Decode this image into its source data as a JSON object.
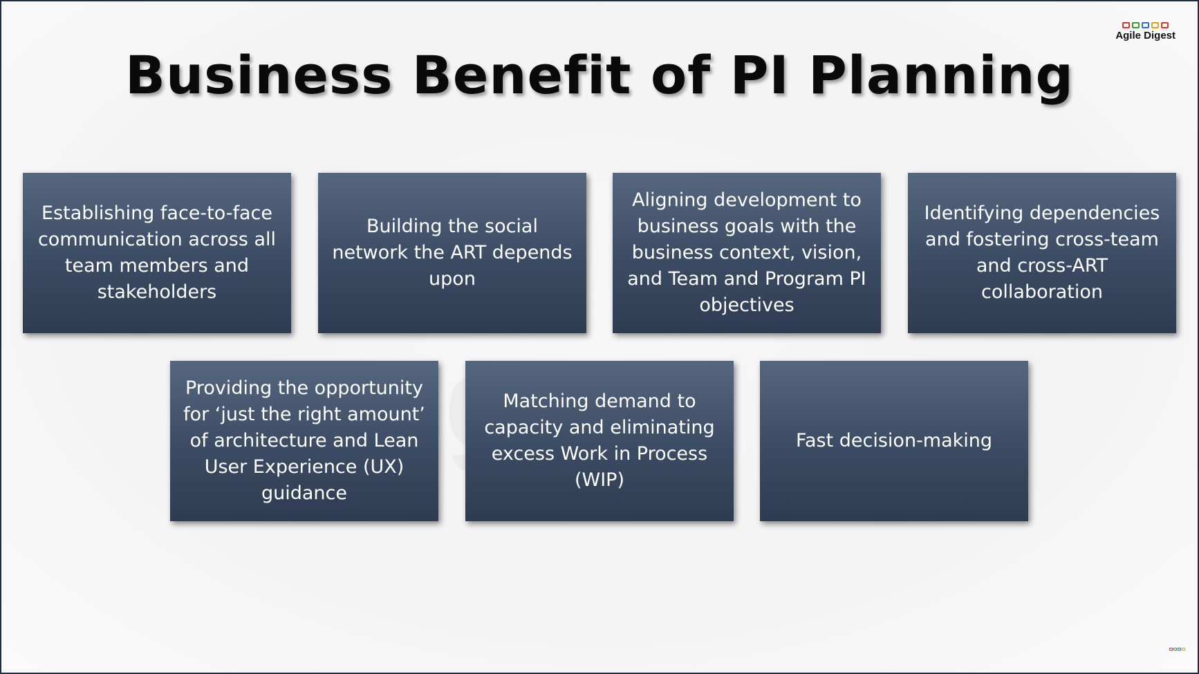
{
  "slide": {
    "title": "Business Benefit of PI Planning",
    "logo_text": "Agile Digest",
    "benefits": [
      "Establishing face-to-face communication across all team members and stakeholders",
      "Building the social network the ART depends upon",
      "Aligning development to business goals with the business context, vision, and Team and Program PI objectives",
      "Identifying dependencies and fostering cross-team and cross-ART collaboration",
      "Providing the opportunity for ‘just the right amount’ of architecture and Lean User Experience (UX) guidance",
      "Matching demand to capacity and eliminating excess Work in Process (WIP)",
      "Fast decision-making"
    ]
  },
  "colors": {
    "card_top": "#55667f",
    "card_bottom": "#2e3c52",
    "border": "#1f2d44",
    "logo_box_colors": [
      "#d23a2f",
      "#3a9a3a",
      "#2f6fd2",
      "#e0a020",
      "#d23a2f"
    ]
  }
}
